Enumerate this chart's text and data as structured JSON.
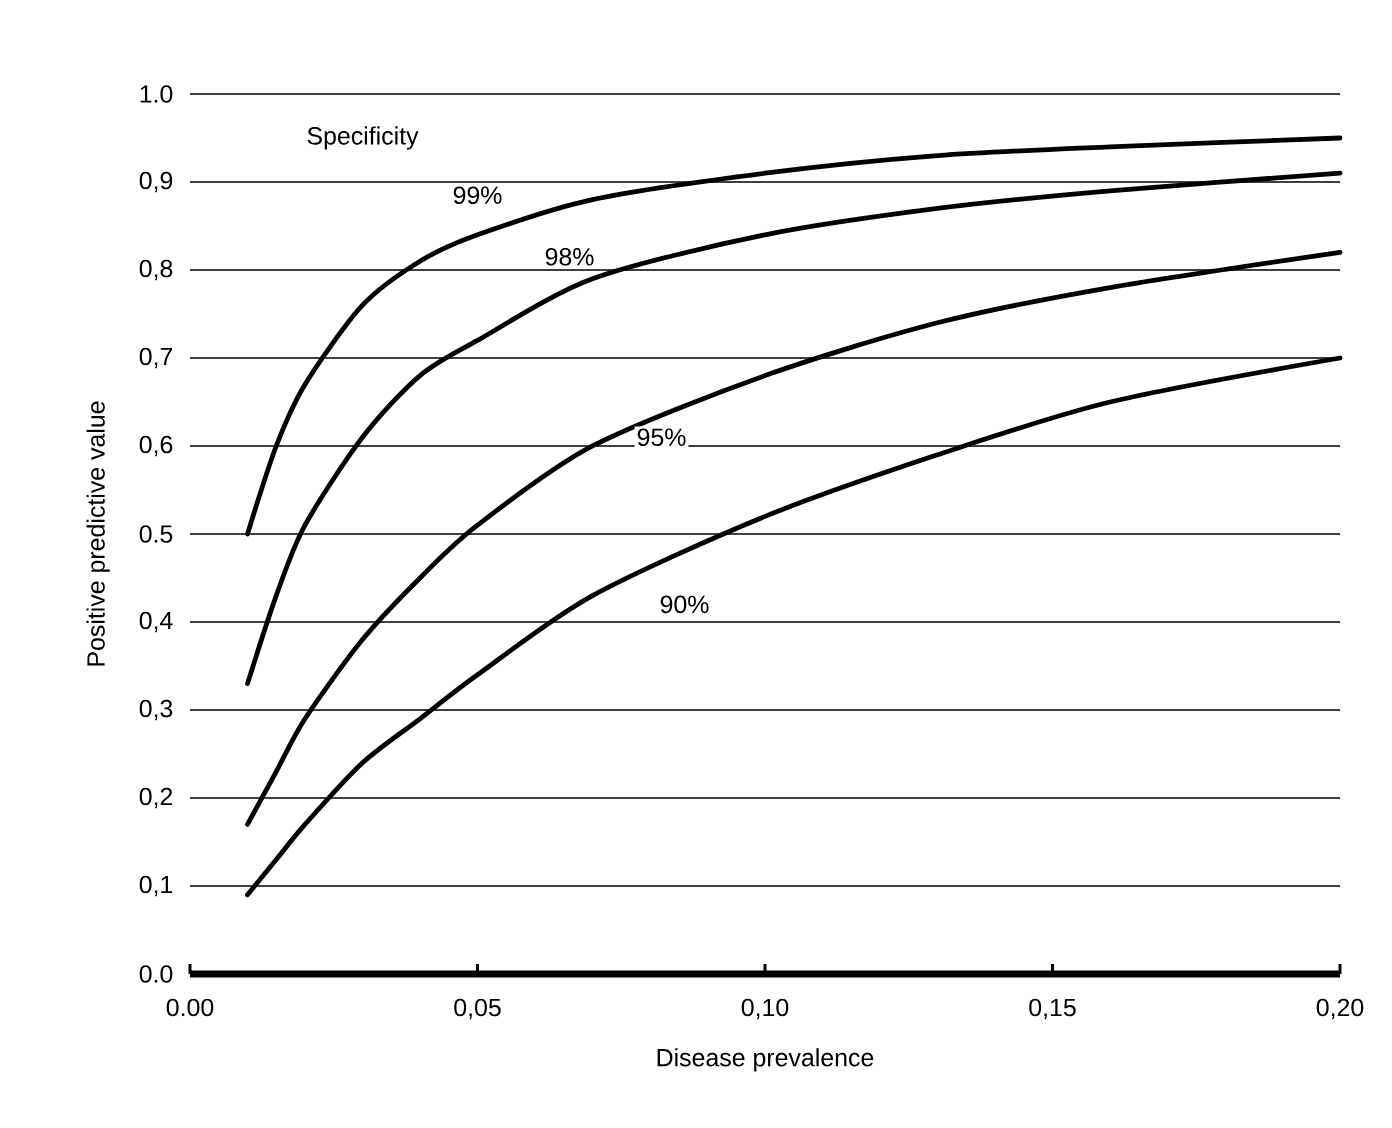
{
  "chart_data": {
    "type": "line",
    "xlabel": "Disease prevalence",
    "ylabel": "Positive predictive value",
    "annotations": [
      "Specificity"
    ],
    "x": [
      0.01,
      0.015,
      0.02,
      0.03,
      0.04,
      0.05,
      0.07,
      0.1,
      0.13,
      0.16,
      0.2
    ],
    "series": [
      {
        "name": "99%",
        "color": "#000000",
        "values": [
          0.5,
          0.6,
          0.67,
          0.76,
          0.81,
          0.84,
          0.88,
          0.91,
          0.93,
          0.94,
          0.95
        ]
      },
      {
        "name": "98%",
        "color": "#000000",
        "values": [
          0.33,
          0.43,
          0.51,
          0.61,
          0.68,
          0.72,
          0.79,
          0.84,
          0.87,
          0.89,
          0.91
        ]
      },
      {
        "name": "95%",
        "color": "#000000",
        "values": [
          0.17,
          0.23,
          0.29,
          0.38,
          0.45,
          0.51,
          0.6,
          0.68,
          0.74,
          0.78,
          0.82
        ]
      },
      {
        "name": "90%",
        "color": "#000000",
        "values": [
          0.09,
          0.13,
          0.17,
          0.24,
          0.29,
          0.34,
          0.43,
          0.52,
          0.59,
          0.65,
          0.7
        ]
      }
    ],
    "xlim": [
      0,
      0.2
    ],
    "xticks": [
      {
        "value": 0,
        "label": "0.00"
      },
      {
        "value": 0.05,
        "label": "0,05"
      },
      {
        "value": 0.1,
        "label": "0,10"
      },
      {
        "value": 0.15,
        "label": "0,15"
      },
      {
        "value": 0.2,
        "label": "0,20"
      }
    ],
    "ylim": [
      0,
      1
    ],
    "yticks": [
      {
        "value": 0,
        "label": "0.0"
      },
      {
        "value": 0.1,
        "label": "0,1"
      },
      {
        "value": 0.2,
        "label": "0,2"
      },
      {
        "value": 0.3,
        "label": "0,3"
      },
      {
        "value": 0.4,
        "label": "0,4"
      },
      {
        "value": 0.5,
        "label": "0.5"
      },
      {
        "value": 0.6,
        "label": "0,6"
      },
      {
        "value": 0.7,
        "label": "0,7"
      },
      {
        "value": 0.8,
        "label": "0,8"
      },
      {
        "value": 0.9,
        "label": "0,9"
      },
      {
        "value": 1.0,
        "label": "1.0"
      }
    ],
    "grid": "y"
  }
}
